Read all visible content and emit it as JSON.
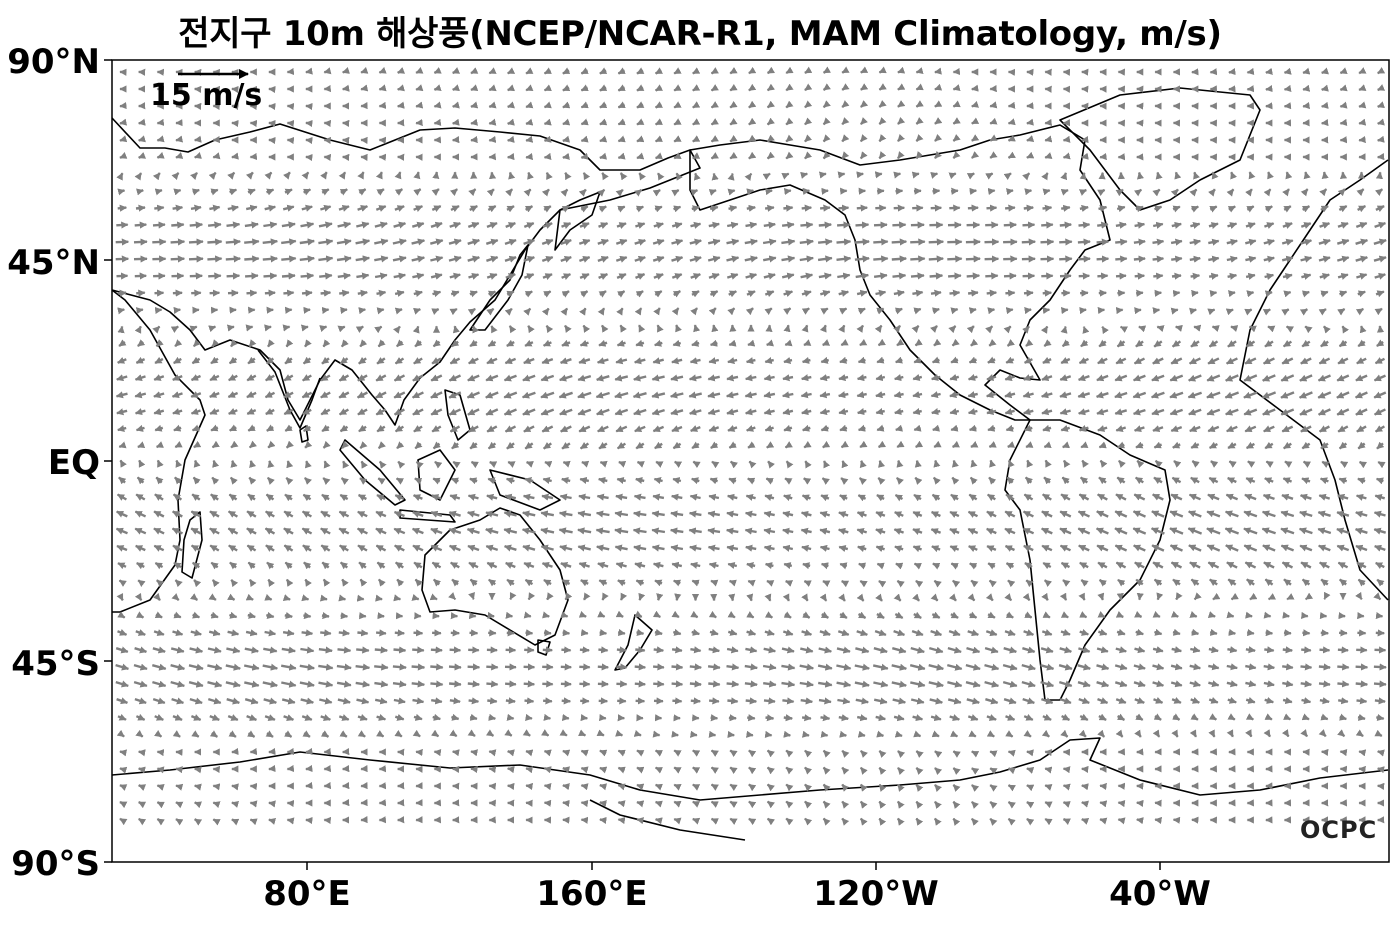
{
  "title": "전지구 10m 해상풍(NCEP/NCAR-R1, MAM Climatology, m/s)",
  "y_axis": {
    "labels": [
      "90°N",
      "45°N",
      "EQ",
      "45°S",
      "90°S"
    ]
  },
  "x_axis": {
    "labels": [
      "80°E",
      "160°E",
      "120°W",
      "40°W"
    ]
  },
  "reference_vector": {
    "label": "15 m/s",
    "speed": 15
  },
  "logo": "OCPC",
  "colors": {
    "vectors": "#808080",
    "coastline": "#000000",
    "frame": "#000000"
  },
  "map": {
    "projection": "PlateCarree",
    "lon_range": [
      25,
      385
    ],
    "lat_range": [
      -90,
      90
    ],
    "central_longitude": 205
  }
}
